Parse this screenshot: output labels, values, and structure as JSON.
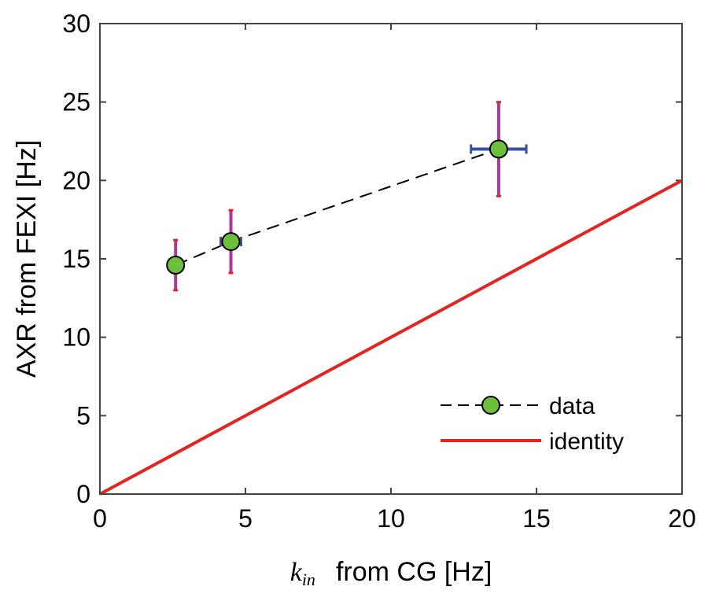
{
  "chart_data": {
    "type": "scatter",
    "xlabel": {
      "symbol": "k",
      "subscript": "in",
      "rest": "from CG [Hz]"
    },
    "ylabel": "AXR from FEXI [Hz]",
    "xlim": [
      0,
      20
    ],
    "ylim": [
      0,
      30
    ],
    "xticks": [
      "0",
      "5",
      "10",
      "15",
      "20"
    ],
    "yticks": [
      "0",
      "5",
      "10",
      "15",
      "20",
      "25",
      "30"
    ],
    "grid": false,
    "legend_position": "bottom-right",
    "series": [
      {
        "name": "data",
        "style": "dashed-line-with-markers",
        "points": [
          {
            "x": 2.6,
            "y": 14.6,
            "xerr": 0.05,
            "yerr": 1.6
          },
          {
            "x": 4.5,
            "y": 16.1,
            "xerr": 0.35,
            "yerr": 2.0
          },
          {
            "x": 13.7,
            "y": 22.0,
            "xerr": 0.95,
            "yerr": 3.0
          }
        ]
      },
      {
        "name": "identity",
        "style": "line",
        "points": [
          {
            "x": 0,
            "y": 0
          },
          {
            "x": 20,
            "y": 20
          }
        ]
      }
    ],
    "colors": {
      "marker_fill": "#6dbf3e",
      "marker_edge": "#000000",
      "dash_line": "#000000",
      "identity_line": "#e52421",
      "xerr": "#3a4fa0",
      "yerr": "#a8399b",
      "yerr_cap": "#e52421"
    }
  }
}
